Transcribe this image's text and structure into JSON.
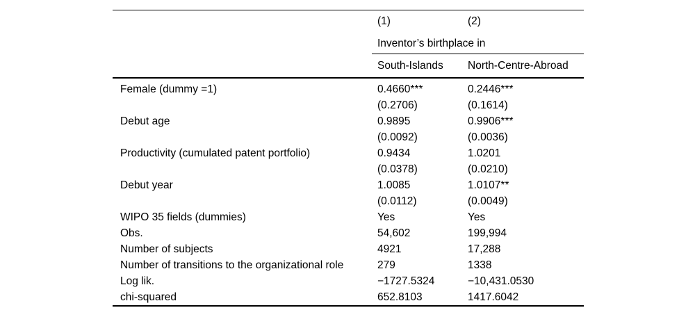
{
  "table": {
    "column_numbers": [
      "(1)",
      "(2)"
    ],
    "span_header": "Inventor’s birthplace in",
    "column_headers": [
      "South-Islands",
      "North-Centre-Abroad"
    ],
    "rows": [
      {
        "label": "Female (dummy =1)",
        "c1": "0.4660***",
        "c2": "0.2446***"
      },
      {
        "label": "",
        "c1": "(0.2706)",
        "c2": "(0.1614)"
      },
      {
        "label": "Debut age",
        "c1": "0.9895",
        "c2": "0.9906***"
      },
      {
        "label": "",
        "c1": "(0.0092)",
        "c2": "(0.0036)"
      },
      {
        "label": "Productivity (cumulated patent portfolio)",
        "c1": "0.9434",
        "c2": "1.0201"
      },
      {
        "label": "",
        "c1": "(0.0378)",
        "c2": "(0.0210)"
      },
      {
        "label": "Debut year",
        "c1": "1.0085",
        "c2": "1.0107**"
      },
      {
        "label": "",
        "c1": "(0.0112)",
        "c2": "(0.0049)"
      },
      {
        "label": "WIPO 35 fields (dummies)",
        "c1": "Yes",
        "c2": "Yes"
      },
      {
        "label": "Obs.",
        "c1": "54,602",
        "c2": "199,994"
      },
      {
        "label": "Number of subjects",
        "c1": "4921",
        "c2": "17,288"
      },
      {
        "label": "Number of transitions to the organizational role",
        "c1": "279",
        "c2": "1338"
      },
      {
        "label": "Log lik.",
        "c1": "−1727.5324",
        "c2": "−10,431.0530"
      },
      {
        "label": "chi-squared",
        "c1": "652.8103",
        "c2": "1417.6042"
      }
    ]
  },
  "colors": {
    "background": "#ffffff",
    "text": "#000000",
    "rule": "#000000"
  }
}
